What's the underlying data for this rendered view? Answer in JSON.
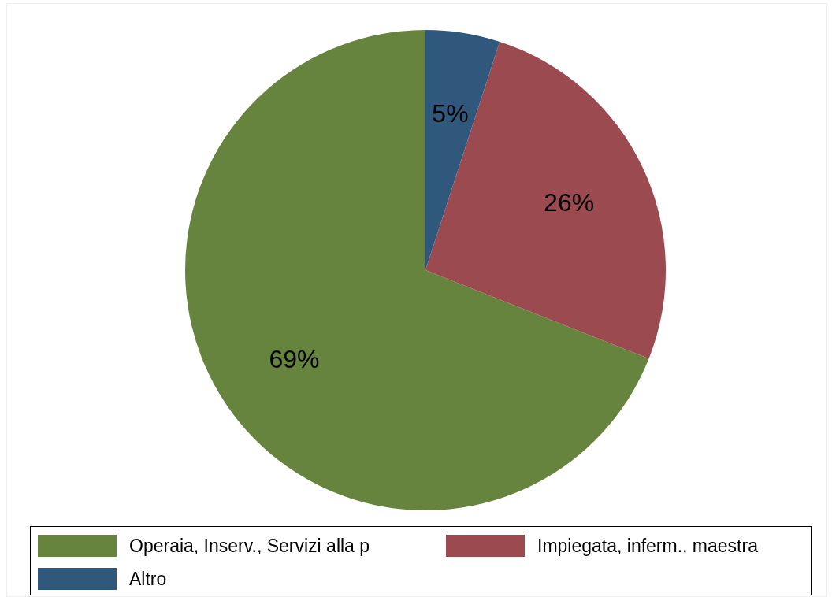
{
  "chart_data": {
    "type": "pie",
    "categories": [
      "Operaia, Inserv., Servizi alla p",
      "Impiegata, inferm., maestra",
      "Altro"
    ],
    "values": [
      69,
      26,
      5
    ],
    "colors": [
      "#67843f",
      "#9b4a4f",
      "#30587c"
    ],
    "value_labels": [
      "69%",
      "26%",
      "5%"
    ],
    "legend": "bottom"
  }
}
